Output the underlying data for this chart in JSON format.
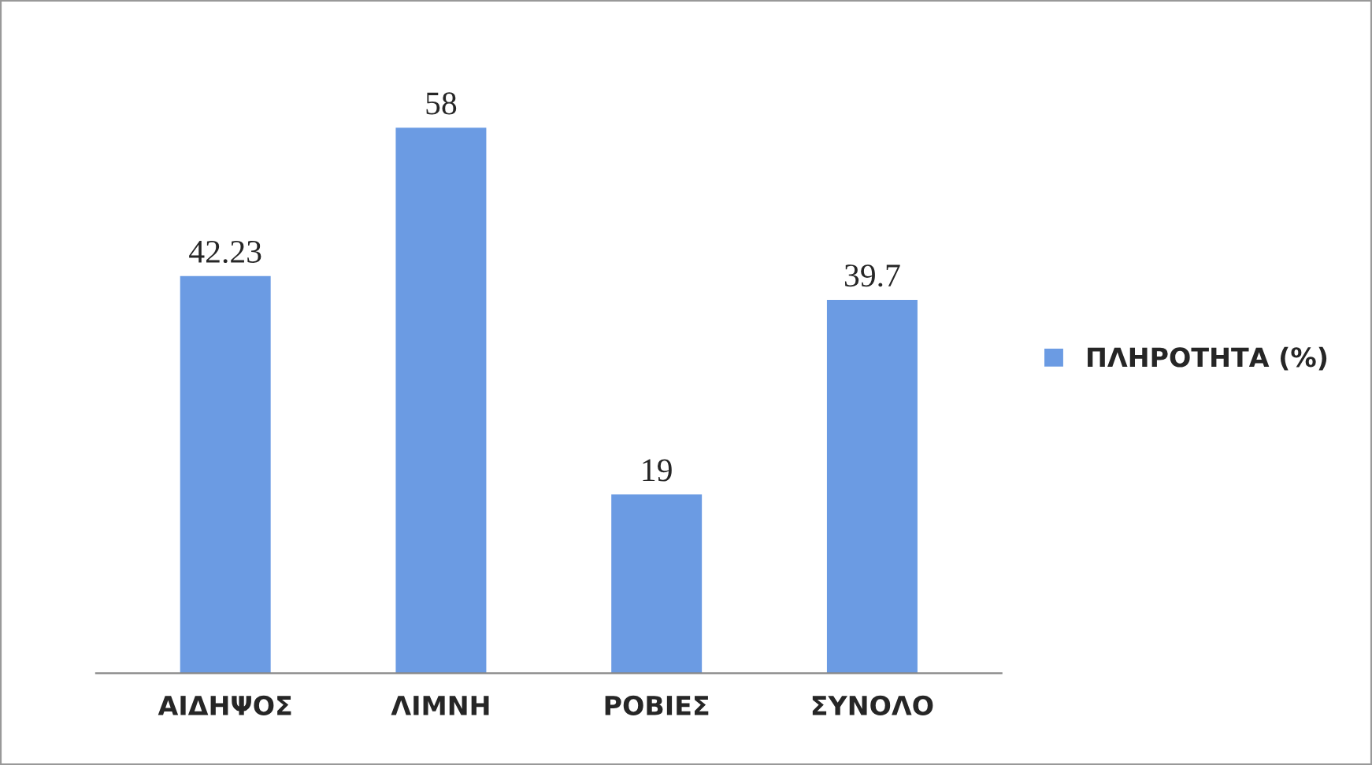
{
  "chart_data": {
    "type": "bar",
    "categories": [
      "ΑΙΔΗΨΟΣ",
      "ΛΙΜΝΗ",
      "ΡΟΒΙΕΣ",
      "ΣΥΝΟΛΟ"
    ],
    "series": [
      {
        "name": "ΠΛΗΡΟΤΗΤΑ (%)",
        "color": "#6b9be3",
        "values": [
          42.23,
          58,
          19,
          39.7
        ]
      }
    ],
    "data_labels": true,
    "tick_labels": "x",
    "legend": "right",
    "grid": false
  }
}
